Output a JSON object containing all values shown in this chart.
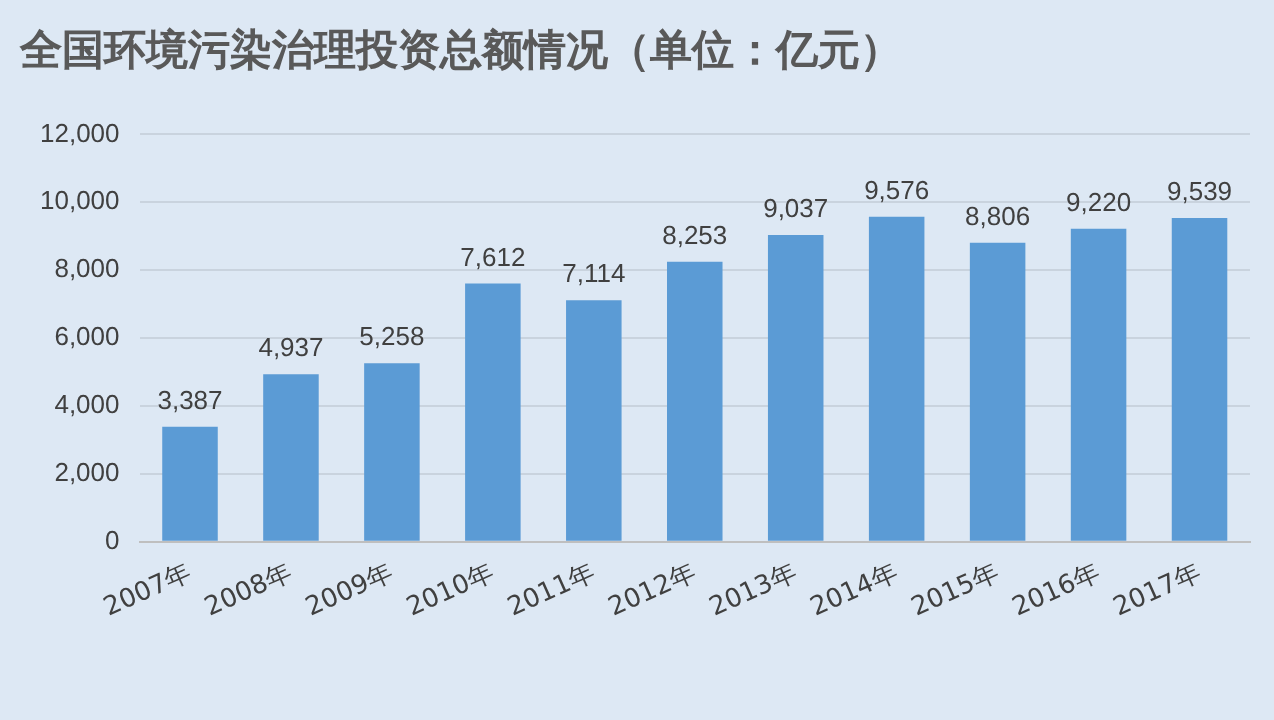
{
  "chart_data": {
    "type": "bar",
    "title": "全国环境污染治理投资总额情况（单位：亿元）",
    "categories": [
      "2007年",
      "2008年",
      "2009年",
      "2010年",
      "2011年",
      "2012年",
      "2013年",
      "2014年",
      "2015年",
      "2016年",
      "2017年"
    ],
    "values": [
      3387,
      4937,
      5258,
      7612,
      7114,
      8253,
      9037,
      9576,
      8806,
      9220,
      9539
    ],
    "value_labels": [
      "3,387",
      "4,937",
      "5,258",
      "7,612",
      "7,114",
      "8,253",
      "9,037",
      "9,576",
      "8,806",
      "9,220",
      "9,539"
    ],
    "color": "#5b9bd5",
    "ylim": [
      0,
      12000
    ],
    "yticks": [
      {
        "value": 0,
        "label": "0"
      },
      {
        "value": 2000,
        "label": "2,000"
      },
      {
        "value": 4000,
        "label": "4,000"
      },
      {
        "value": 6000,
        "label": "6,000"
      },
      {
        "value": 8000,
        "label": "8,000"
      },
      {
        "value": 10000,
        "label": "10,000"
      },
      {
        "value": 12000,
        "label": "12,000"
      }
    ],
    "grid": "y"
  }
}
